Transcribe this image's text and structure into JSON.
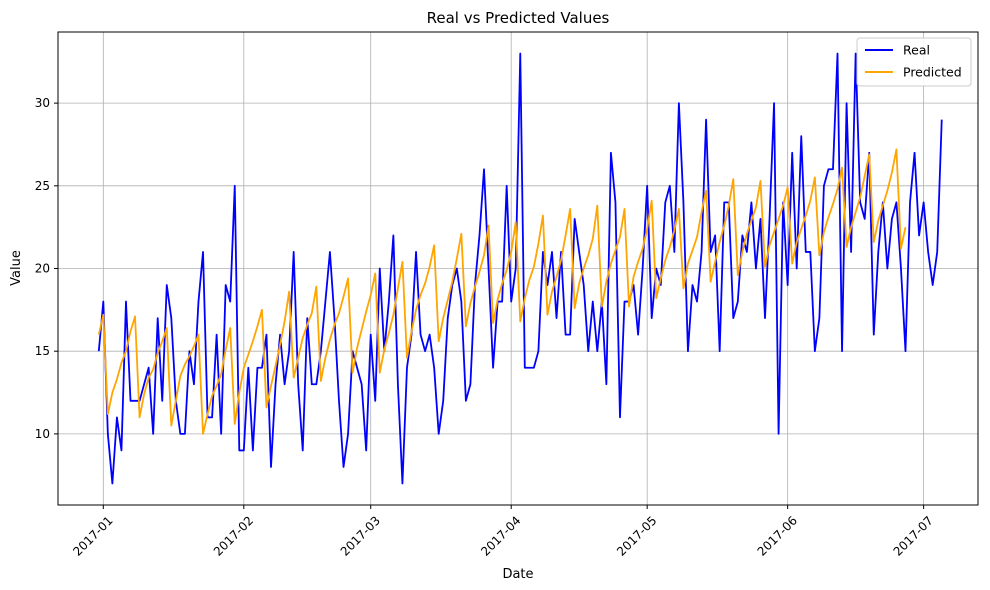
{
  "chart_data": {
    "type": "line",
    "title": "Real vs Predicted Values",
    "xlabel": "Date",
    "ylabel": "Value",
    "x_start": "2016-12-31",
    "x_end": "2017-07-04",
    "x_ticks": [
      "2017-01",
      "2017-02",
      "2017-03",
      "2017-04",
      "2017-05",
      "2017-06",
      "2017-07"
    ],
    "y_ticks": [
      10,
      15,
      20,
      25,
      30
    ],
    "xlim": [
      "2016-12-22",
      "2017-07-13"
    ],
    "ylim": [
      5.7,
      34.3
    ],
    "grid": true,
    "legend_position": "top-right",
    "series": [
      {
        "name": "Real",
        "color": "#0000ff",
        "values": [
          15,
          18,
          10,
          7,
          11,
          9,
          18,
          12,
          12,
          12,
          13,
          14,
          10,
          17,
          12,
          19,
          17,
          12,
          10,
          10,
          15,
          13,
          18,
          21,
          11,
          11,
          16,
          10,
          19,
          18,
          25,
          9,
          9,
          14,
          9,
          14,
          14,
          16,
          8,
          13,
          16,
          13,
          15,
          21,
          13,
          9,
          17,
          13,
          13,
          15,
          18,
          21,
          17,
          12,
          8,
          10,
          15,
          14,
          13,
          9,
          16,
          12,
          20,
          15,
          18,
          22,
          13,
          7,
          14,
          16,
          21,
          16,
          15,
          16,
          14,
          10,
          12,
          17,
          19,
          20,
          18,
          12,
          13,
          19,
          22,
          26,
          20,
          14,
          18,
          18,
          25,
          18,
          20,
          33,
          14,
          14,
          14,
          15,
          21,
          19,
          21,
          17,
          21,
          16,
          16,
          23,
          21,
          19,
          15,
          18,
          15,
          18,
          13,
          27,
          24,
          11,
          18,
          18,
          19,
          16,
          20,
          25,
          17,
          20,
          19,
          24,
          25,
          21,
          30,
          24,
          15,
          19,
          18,
          21,
          29,
          21,
          22,
          15,
          24,
          24,
          17,
          18,
          22,
          21,
          24,
          20,
          23,
          17,
          23,
          30,
          10,
          24,
          19,
          27,
          20,
          28,
          21,
          21,
          15,
          17,
          25,
          26,
          26,
          33,
          15,
          30,
          21,
          33,
          24,
          23,
          27,
          16,
          21,
          24,
          20,
          23,
          24,
          20,
          15,
          24,
          27,
          22,
          24,
          21,
          19,
          21,
          29
        ]
      },
      {
        "name": "Predicted",
        "color": "#ffa500",
        "values": [
          16,
          17.2,
          11.2,
          12.5,
          13.3,
          14.3,
          15,
          16.2,
          17.1,
          11,
          12.4,
          13.4,
          13.9,
          14.9,
          15.6,
          16.4,
          10.5,
          12,
          13.5,
          14.2,
          14.7,
          15.3,
          16,
          10,
          11.2,
          12.3,
          12.9,
          13.6,
          15.1,
          16.4,
          10.6,
          12.5,
          14,
          14.8,
          15.6,
          16.5,
          17.5,
          11.6,
          12.9,
          14.1,
          15.4,
          16.8,
          18.6,
          13.4,
          14.6,
          15.8,
          16.6,
          17.3,
          18.9,
          13.2,
          14.6,
          15.7,
          16.6,
          17.3,
          18.3,
          19.4,
          13.7,
          15.2,
          16.3,
          17.4,
          18.4,
          19.7,
          13.7,
          15.1,
          16.1,
          17.2,
          18.8,
          20.4,
          14.6,
          16.2,
          17.5,
          18.4,
          19.1,
          20.1,
          21.4,
          15.6,
          17,
          18.1,
          19.2,
          20.6,
          22.1,
          16.5,
          17.9,
          18.9,
          19.8,
          20.8,
          22.6,
          16.7,
          18.1,
          19.1,
          19.9,
          21,
          22.8,
          16.8,
          18.2,
          19.3,
          20.1,
          21.5,
          23.2,
          17.2,
          18.6,
          19.5,
          20.5,
          22,
          23.6,
          17.6,
          19.1,
          20,
          20.8,
          21.8,
          23.8,
          17.7,
          19.2,
          20.3,
          21.1,
          21.9,
          23.6,
          17.7,
          19.5,
          20.4,
          21.2,
          22.4,
          24.1,
          18.2,
          19.4,
          20.5,
          21.3,
          22.3,
          23.6,
          18.8,
          20.3,
          21.1,
          21.9,
          23.4,
          24.7,
          19.2,
          20.4,
          21.6,
          22.6,
          23.8,
          25.4,
          19.6,
          21,
          22.1,
          22.9,
          23.7,
          25.3,
          20.1,
          21.4,
          22.2,
          23,
          23.8,
          24.9,
          20.3,
          21.6,
          22.4,
          23.2,
          24.1,
          25.5,
          20.8,
          22.2,
          23.1,
          23.9,
          24.8,
          26.1,
          21.3,
          22.5,
          23.4,
          24.3,
          25.6,
          26.9,
          21.6,
          22.9,
          23.8,
          24.7,
          25.8,
          27.2,
          21.2,
          22.5
        ]
      }
    ]
  }
}
